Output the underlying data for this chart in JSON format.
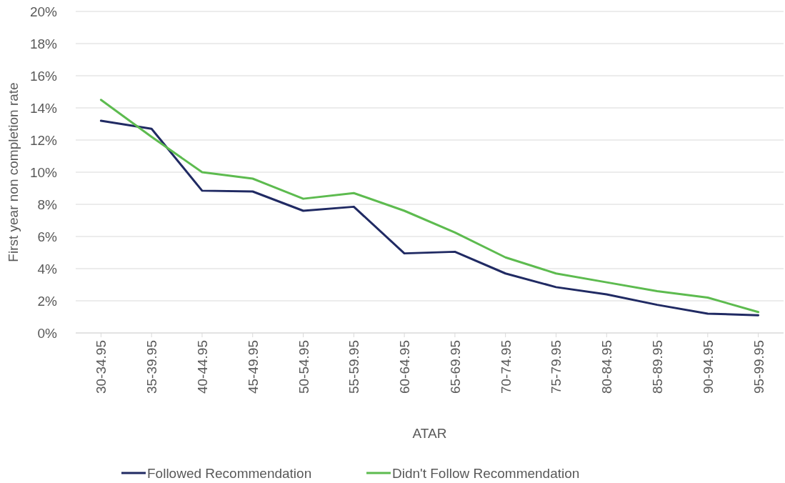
{
  "chart_data": {
    "type": "line",
    "xlabel": "ATAR",
    "ylabel": "First year non completion rate",
    "categories": [
      "30-34.95",
      "35-39.95",
      "40-44.95",
      "45-49.95",
      "50-54.95",
      "55-59.95",
      "60-64.95",
      "65-69.95",
      "70-74.95",
      "75-79.95",
      "80-84.95",
      "85-89.95",
      "90-94.95",
      "95-99.95"
    ],
    "series": [
      {
        "name": "Followed Recommendation",
        "color": "#202a63",
        "values": [
          13.2,
          12.7,
          8.85,
          8.8,
          7.6,
          7.85,
          4.95,
          5.05,
          3.7,
          2.85,
          2.4,
          1.75,
          1.2,
          1.1
        ]
      },
      {
        "name": "Didn't Follow Recommendation",
        "color": "#5dbb4f",
        "values": [
          14.5,
          12.2,
          10.0,
          9.6,
          8.35,
          8.7,
          7.6,
          6.25,
          4.7,
          3.7,
          3.15,
          2.6,
          2.2,
          1.3
        ]
      }
    ],
    "ylim": [
      0,
      20
    ],
    "yticks": [
      {
        "value": 0,
        "label": "0%"
      },
      {
        "value": 2,
        "label": "2%"
      },
      {
        "value": 4,
        "label": "4%"
      },
      {
        "value": 6,
        "label": "6%"
      },
      {
        "value": 8,
        "label": "8%"
      },
      {
        "value": 10,
        "label": "10%"
      },
      {
        "value": 12,
        "label": "12%"
      },
      {
        "value": 14,
        "label": "14%"
      },
      {
        "value": 16,
        "label": "16%"
      },
      {
        "value": 18,
        "label": "18%"
      },
      {
        "value": 20,
        "label": "20%"
      }
    ],
    "grid": "y",
    "legend": "bottom",
    "marker": "none",
    "line_style": "solid"
  }
}
